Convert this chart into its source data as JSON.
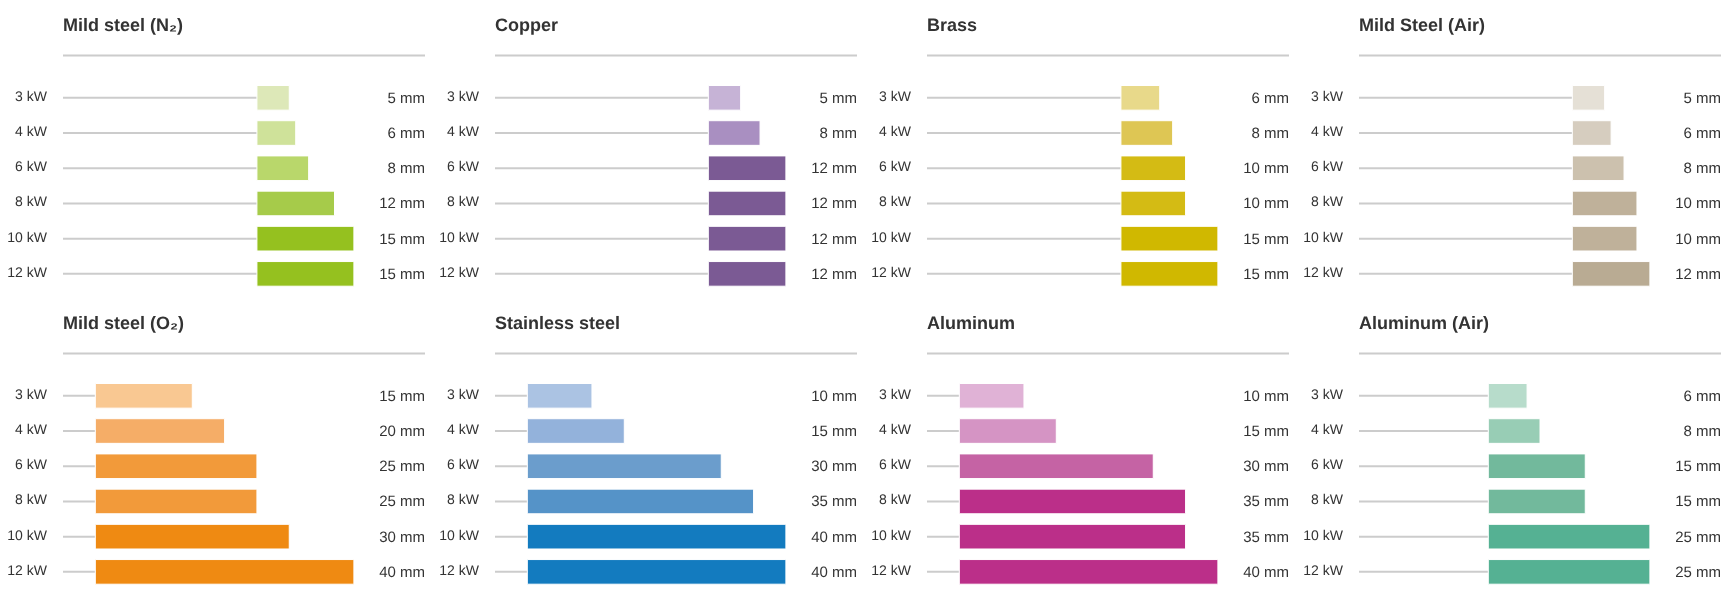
{
  "chart_data": [
    {
      "type": "bar",
      "orientation": "horizontal",
      "title": "Mild steel (N₂)",
      "categories": [
        "3 kW",
        "4 kW",
        "6 kW",
        "8 kW",
        "10 kW",
        "12 kW"
      ],
      "values": [
        5,
        6,
        8,
        12,
        15,
        15
      ],
      "value_labels": [
        "5 mm",
        "6 mm",
        "8 mm",
        "12 mm",
        "15 mm",
        "15 mm"
      ],
      "colors": [
        "#dde8b8",
        "#cfe29a",
        "#b9d76b",
        "#a6cb4a",
        "#95c11f",
        "#95c11f"
      ]
    },
    {
      "type": "bar",
      "orientation": "horizontal",
      "title": "Copper",
      "categories": [
        "3 kW",
        "4 kW",
        "6 kW",
        "8 kW",
        "10 kW",
        "12 kW"
      ],
      "values": [
        5,
        8,
        12,
        12,
        12,
        12
      ],
      "value_labels": [
        "5 mm",
        "8 mm",
        "12 mm",
        "12 mm",
        "12 mm",
        "12 mm"
      ],
      "colors": [
        "#c6b3d6",
        "#a98fc1",
        "#7b5a94",
        "#7b5a94",
        "#7b5a94",
        "#7b5a94"
      ]
    },
    {
      "type": "bar",
      "orientation": "horizontal",
      "title": "Brass",
      "categories": [
        "3 kW",
        "4 kW",
        "6 kW",
        "8 kW",
        "10 kW",
        "12 kW"
      ],
      "values": [
        6,
        8,
        10,
        10,
        15,
        15
      ],
      "value_labels": [
        "6 mm",
        "8 mm",
        "10 mm",
        "10 mm",
        "15 mm",
        "15 mm"
      ],
      "colors": [
        "#e8d98a",
        "#dec654",
        "#d4bb14",
        "#d4bb14",
        "#d0b800",
        "#d0b800"
      ]
    },
    {
      "type": "bar",
      "orientation": "horizontal",
      "title": "Mild Steel (Air)",
      "categories": [
        "3 kW",
        "4 kW",
        "6 kW",
        "8 kW",
        "10 kW",
        "12 kW"
      ],
      "values": [
        5,
        6,
        8,
        10,
        10,
        12
      ],
      "value_labels": [
        "5 mm",
        "6 mm",
        "8 mm",
        "10 mm",
        "10 mm",
        "12 mm"
      ],
      "colors": [
        "#e5e0d6",
        "#d6cdbf",
        "#ccc1ae",
        "#bfb19a",
        "#bfb19a",
        "#b9ab93"
      ]
    },
    {
      "type": "bar",
      "orientation": "horizontal",
      "title": "Mild steel (O₂)",
      "categories": [
        "3 kW",
        "4 kW",
        "6 kW",
        "8 kW",
        "10 kW",
        "12 kW"
      ],
      "values": [
        15,
        20,
        25,
        25,
        30,
        40
      ],
      "value_labels": [
        "15 mm",
        "20 mm",
        "25 mm",
        "25 mm",
        "30 mm",
        "40 mm"
      ],
      "colors": [
        "#f9c892",
        "#f5ad67",
        "#f29a3a",
        "#f29a3a",
        "#ef8a12",
        "#ef8a12"
      ]
    },
    {
      "type": "bar",
      "orientation": "horizontal",
      "title": "Stainless steel",
      "categories": [
        "3 kW",
        "4 kW",
        "6 kW",
        "8 kW",
        "10 kW",
        "12 kW"
      ],
      "values": [
        10,
        15,
        30,
        35,
        40,
        40
      ],
      "value_labels": [
        "10 mm",
        "15 mm",
        "30 mm",
        "35 mm",
        "40 mm",
        "40 mm"
      ],
      "colors": [
        "#abc3e3",
        "#93b2db",
        "#6b9dcc",
        "#5593c8",
        "#137bbf",
        "#137bbf"
      ]
    },
    {
      "type": "bar",
      "orientation": "horizontal",
      "title": "Aluminum",
      "categories": [
        "3 kW",
        "4 kW",
        "6 kW",
        "8 kW",
        "10 kW",
        "12 kW"
      ],
      "values": [
        10,
        15,
        30,
        35,
        35,
        40
      ],
      "value_labels": [
        "10 mm",
        "15 mm",
        "30 mm",
        "35 mm",
        "35 mm",
        "40 mm"
      ],
      "colors": [
        "#e0b2d6",
        "#d594c4",
        "#c563a4",
        "#bb2f89",
        "#bb2f89",
        "#bb2f89"
      ]
    },
    {
      "type": "bar",
      "orientation": "horizontal",
      "title": "Aluminum (Air)",
      "categories": [
        "3 kW",
        "4 kW",
        "6 kW",
        "8 kW",
        "10 kW",
        "12 kW"
      ],
      "values": [
        6,
        8,
        15,
        15,
        25,
        25
      ],
      "value_labels": [
        "6 mm",
        "8 mm",
        "15 mm",
        "15 mm",
        "25 mm",
        "25 mm"
      ],
      "colors": [
        "#b7dccb",
        "#98cdb5",
        "#72b99c",
        "#72b99c",
        "#55b193",
        "#55b193"
      ]
    }
  ]
}
